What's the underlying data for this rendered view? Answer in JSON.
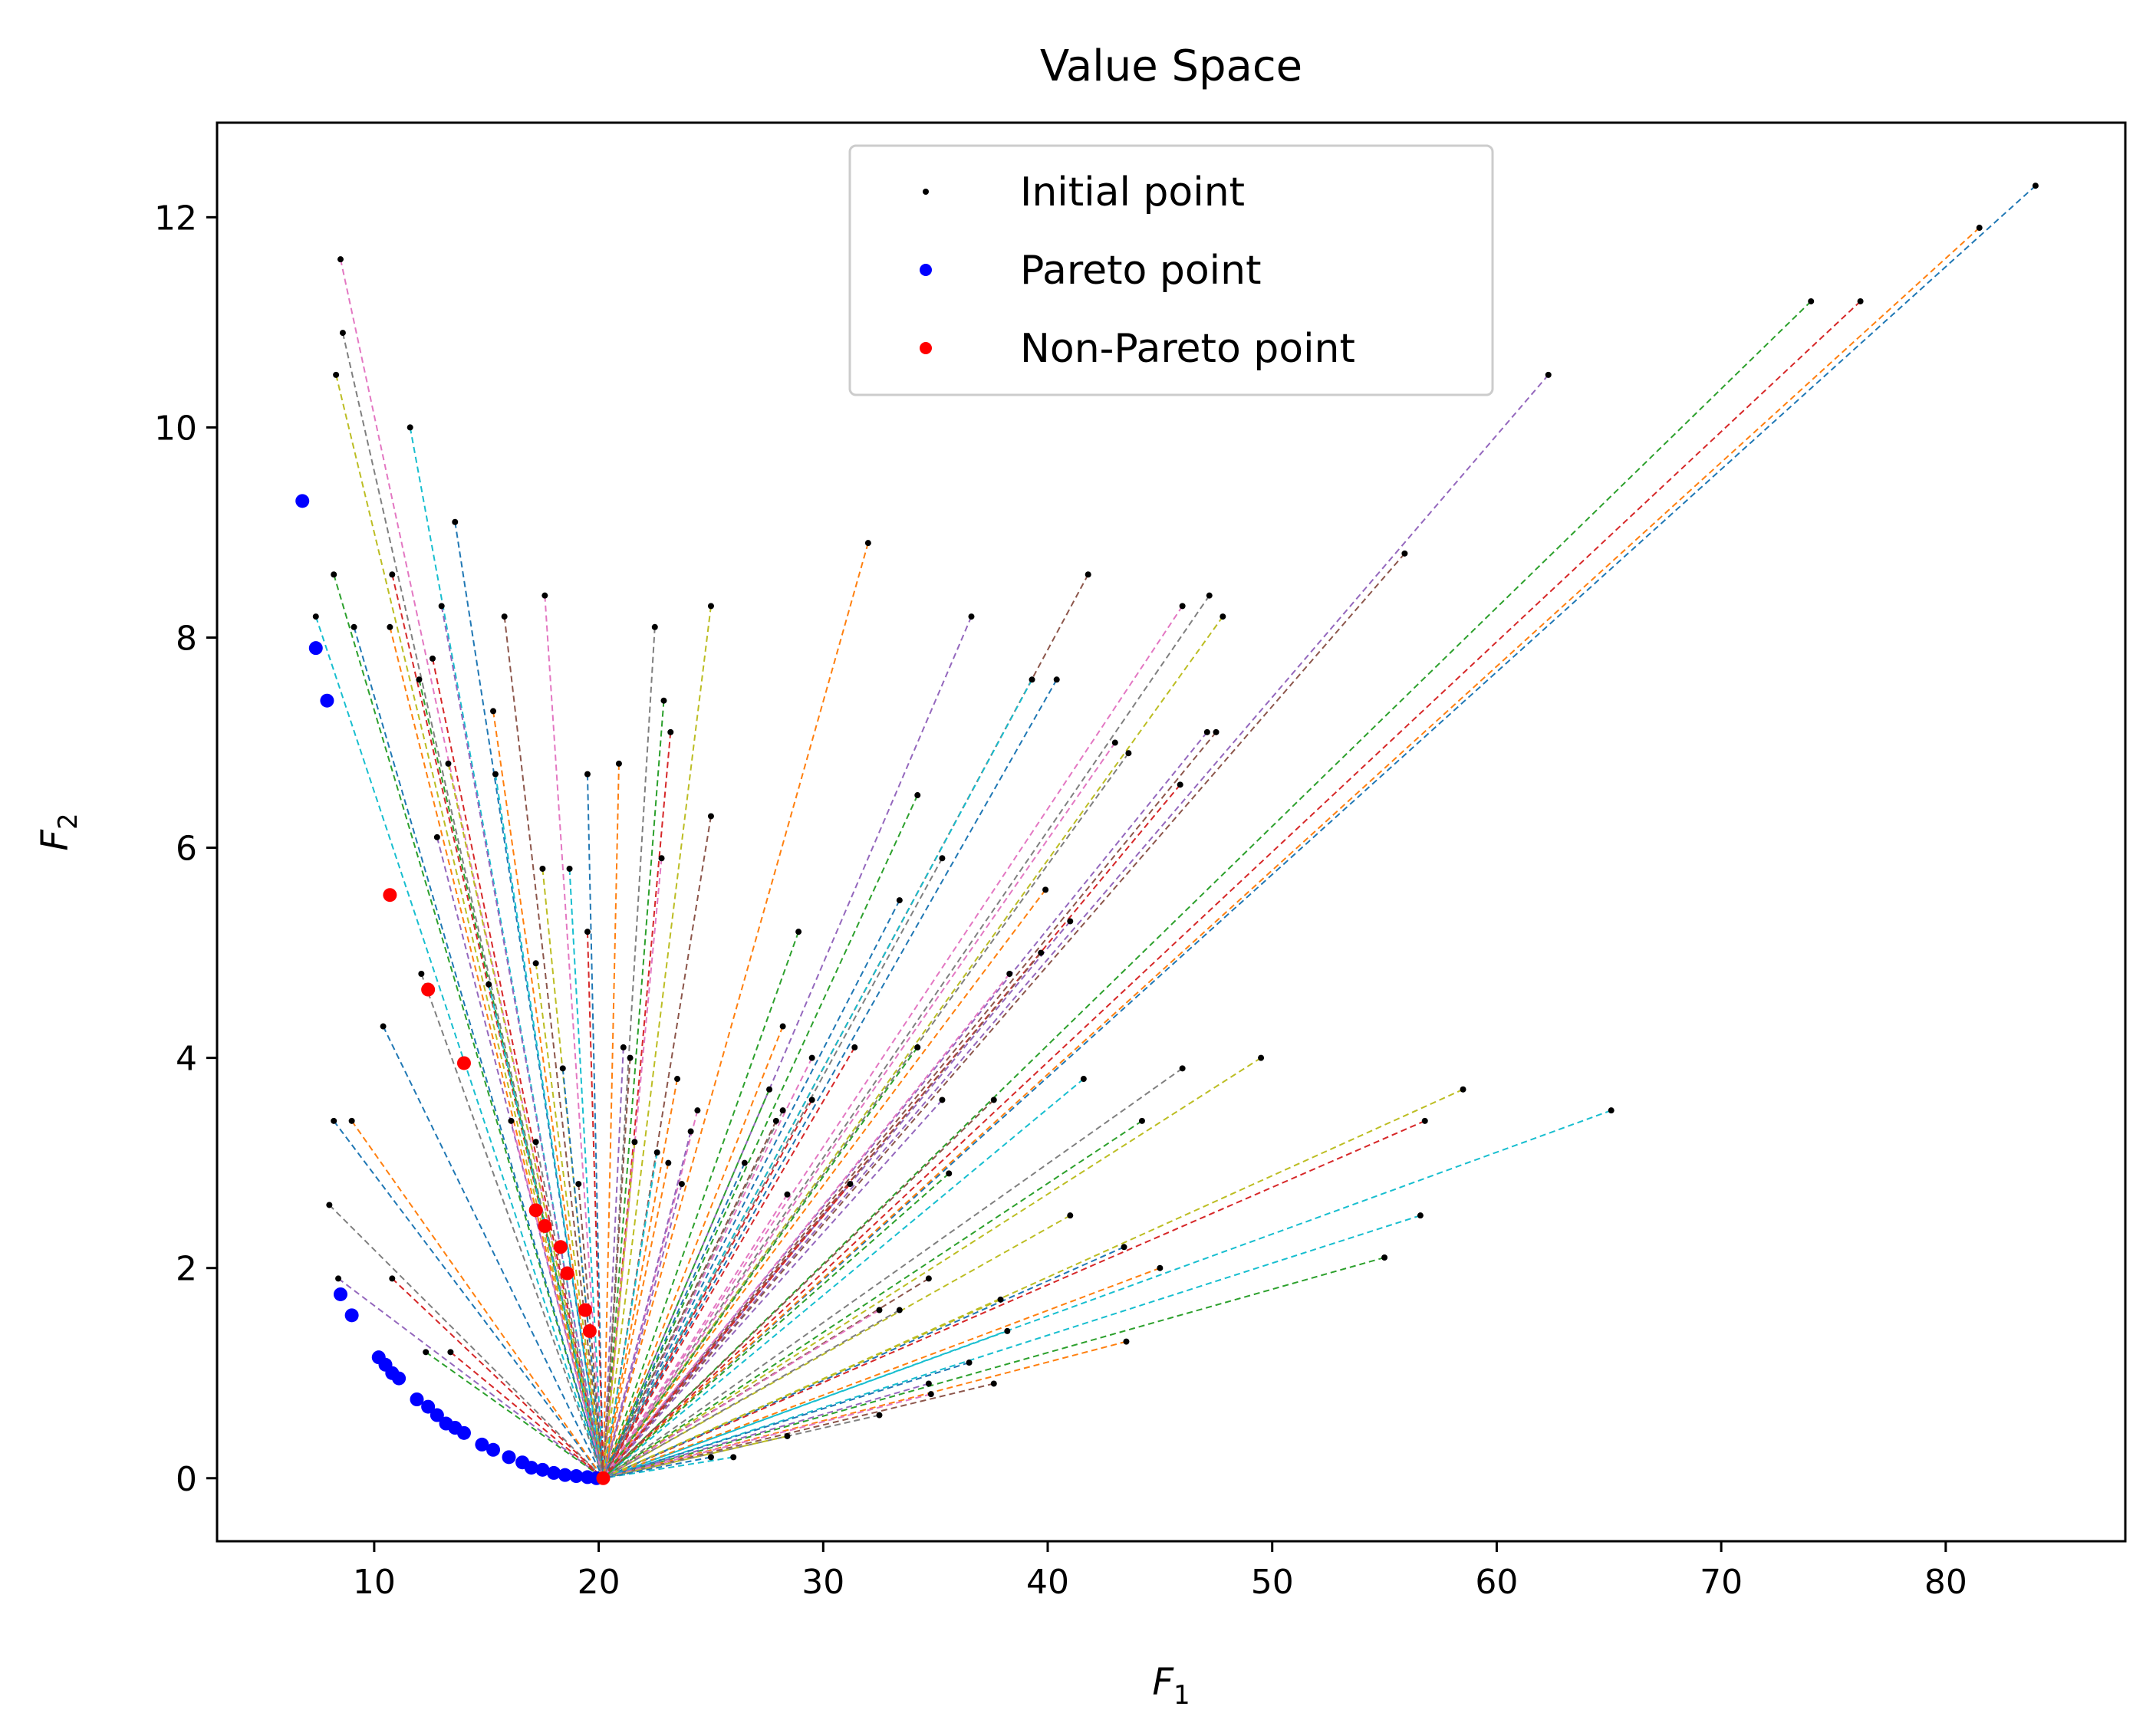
{
  "chart_data": {
    "type": "scatter",
    "title": "Value Space",
    "xlabel": "F",
    "xlabel_subscript": "1",
    "ylabel": "F",
    "ylabel_subscript": "2",
    "xlim": [
      3,
      88
    ],
    "ylim": [
      -0.6,
      12.9
    ],
    "xticks": [
      10,
      20,
      30,
      40,
      50,
      60,
      70,
      80
    ],
    "yticks": [
      0,
      2,
      4,
      6,
      8,
      10,
      12
    ],
    "grid": false,
    "legend": {
      "placement": "top-center",
      "entries": [
        {
          "label": "Initial point",
          "color": "#000000",
          "marker": "small"
        },
        {
          "label": "Pareto point",
          "color": "#0000ff",
          "marker": "medium"
        },
        {
          "label": "Non-Pareto point",
          "color": "#ff0000",
          "marker": "medium"
        }
      ]
    },
    "trajectory_colors": [
      "#1f77b4",
      "#ff7f0e",
      "#2ca02c",
      "#d62728",
      "#9467bd",
      "#8c564b",
      "#e377c2",
      "#7f7f7f",
      "#bcbd22",
      "#17becf"
    ],
    "convergence_point": [
      20.2,
      0.0
    ],
    "initial_points": [
      [
        84.0,
        12.3
      ],
      [
        81.5,
        11.9
      ],
      [
        74.0,
        11.2
      ],
      [
        76.2,
        11.2
      ],
      [
        62.3,
        10.5
      ],
      [
        55.9,
        8.8
      ],
      [
        8.5,
        11.6
      ],
      [
        8.6,
        10.9
      ],
      [
        8.3,
        10.5
      ],
      [
        11.6,
        10.0
      ],
      [
        13.6,
        9.1
      ],
      [
        32.0,
        8.9
      ],
      [
        8.2,
        8.6
      ],
      [
        10.8,
        8.6
      ],
      [
        13.0,
        8.3
      ],
      [
        15.8,
        8.2
      ],
      [
        17.6,
        8.4
      ],
      [
        22.5,
        8.1
      ],
      [
        25.0,
        8.3
      ],
      [
        7.4,
        8.2
      ],
      [
        9.1,
        8.1
      ],
      [
        10.7,
        8.1
      ],
      [
        12.0,
        7.6
      ],
      [
        12.6,
        7.8
      ],
      [
        36.6,
        8.2
      ],
      [
        41.8,
        8.6
      ],
      [
        46.0,
        8.3
      ],
      [
        47.2,
        8.4
      ],
      [
        47.8,
        8.2
      ],
      [
        39.3,
        7.6
      ],
      [
        40.4,
        7.6
      ],
      [
        15.3,
        7.3
      ],
      [
        22.9,
        7.4
      ],
      [
        23.2,
        7.1
      ],
      [
        47.1,
        7.1
      ],
      [
        47.5,
        7.1
      ],
      [
        43.0,
        7.0
      ],
      [
        43.6,
        6.9
      ],
      [
        13.3,
        6.8
      ],
      [
        15.4,
        6.7
      ],
      [
        19.5,
        6.7
      ],
      [
        20.9,
        6.8
      ],
      [
        34.2,
        6.5
      ],
      [
        45.9,
        6.6
      ],
      [
        12.8,
        6.1
      ],
      [
        25.0,
        6.3
      ],
      [
        22.8,
        5.9
      ],
      [
        35.3,
        5.9
      ],
      [
        17.5,
        5.8
      ],
      [
        18.7,
        5.8
      ],
      [
        33.4,
        5.5
      ],
      [
        39.9,
        5.6
      ],
      [
        28.9,
        5.2
      ],
      [
        19.5,
        5.2
      ],
      [
        41.0,
        5.3
      ],
      [
        39.7,
        5.0
      ],
      [
        38.3,
        4.8
      ],
      [
        12.1,
        4.8
      ],
      [
        17.2,
        4.9
      ],
      [
        15.1,
        4.7
      ],
      [
        10.4,
        4.3
      ],
      [
        28.2,
        4.3
      ],
      [
        34.2,
        4.1
      ],
      [
        31.4,
        4.1
      ],
      [
        21.1,
        4.1
      ],
      [
        21.4,
        4.0
      ],
      [
        29.5,
        4.0
      ],
      [
        46.0,
        3.9
      ],
      [
        49.5,
        4.0
      ],
      [
        41.6,
        3.8
      ],
      [
        18.4,
        3.9
      ],
      [
        23.5,
        3.8
      ],
      [
        27.6,
        3.7
      ],
      [
        29.5,
        3.6
      ],
      [
        35.3,
        3.6
      ],
      [
        37.6,
        3.6
      ],
      [
        24.4,
        3.5
      ],
      [
        28.2,
        3.5
      ],
      [
        58.5,
        3.7
      ],
      [
        65.1,
        3.5
      ],
      [
        8.2,
        3.4
      ],
      [
        9.0,
        3.4
      ],
      [
        44.2,
        3.4
      ],
      [
        56.8,
        3.4
      ],
      [
        24.1,
        3.3
      ],
      [
        27.9,
        3.4
      ],
      [
        16.1,
        3.4
      ],
      [
        17.2,
        3.2
      ],
      [
        21.6,
        3.2
      ],
      [
        22.6,
        3.1
      ],
      [
        26.5,
        3.0
      ],
      [
        23.1,
        3.0
      ],
      [
        35.6,
        2.9
      ],
      [
        31.2,
        2.8
      ],
      [
        23.7,
        2.8
      ],
      [
        19.1,
        2.8
      ],
      [
        28.4,
        2.7
      ],
      [
        8.0,
        2.6
      ],
      [
        41.0,
        2.5
      ],
      [
        56.6,
        2.5
      ],
      [
        43.4,
        2.2
      ],
      [
        45.0,
        2.0
      ],
      [
        55.0,
        2.1
      ],
      [
        10.8,
        1.9
      ],
      [
        8.4,
        1.9
      ],
      [
        34.7,
        1.9
      ],
      [
        32.5,
        1.6
      ],
      [
        33.4,
        1.6
      ],
      [
        37.9,
        1.7
      ],
      [
        38.2,
        1.4
      ],
      [
        36.5,
        1.1
      ],
      [
        43.5,
        1.3
      ],
      [
        12.3,
        1.2
      ],
      [
        13.4,
        1.2
      ],
      [
        34.7,
        0.9
      ],
      [
        37.6,
        0.9
      ],
      [
        34.8,
        0.8
      ],
      [
        32.5,
        0.6
      ],
      [
        28.4,
        0.4
      ],
      [
        26.0,
        0.2
      ],
      [
        25.0,
        0.2
      ]
    ],
    "pareto_points": [
      [
        6.8,
        9.3
      ],
      [
        7.4,
        7.9
      ],
      [
        7.9,
        7.4
      ],
      [
        8.5,
        1.75
      ],
      [
        9.0,
        1.55
      ],
      [
        10.2,
        1.15
      ],
      [
        10.5,
        1.08
      ],
      [
        10.8,
        1.0
      ],
      [
        11.1,
        0.95
      ],
      [
        11.9,
        0.75
      ],
      [
        12.4,
        0.68
      ],
      [
        12.8,
        0.6
      ],
      [
        13.2,
        0.52
      ],
      [
        13.6,
        0.48
      ],
      [
        14.0,
        0.43
      ],
      [
        14.8,
        0.32
      ],
      [
        15.3,
        0.27
      ],
      [
        16.0,
        0.2
      ],
      [
        16.6,
        0.15
      ],
      [
        17.0,
        0.1
      ],
      [
        17.5,
        0.08
      ],
      [
        18.0,
        0.05
      ],
      [
        18.5,
        0.03
      ],
      [
        19.0,
        0.02
      ],
      [
        19.5,
        0.01
      ],
      [
        19.9,
        0.0
      ]
    ],
    "non_pareto_points": [
      [
        10.7,
        5.55
      ],
      [
        12.4,
        4.65
      ],
      [
        14.0,
        3.95
      ],
      [
        17.2,
        2.55
      ],
      [
        17.6,
        2.4
      ],
      [
        18.3,
        2.2
      ],
      [
        18.6,
        1.95
      ],
      [
        19.4,
        1.6
      ],
      [
        19.6,
        1.4
      ],
      [
        20.2,
        0.0
      ]
    ]
  }
}
